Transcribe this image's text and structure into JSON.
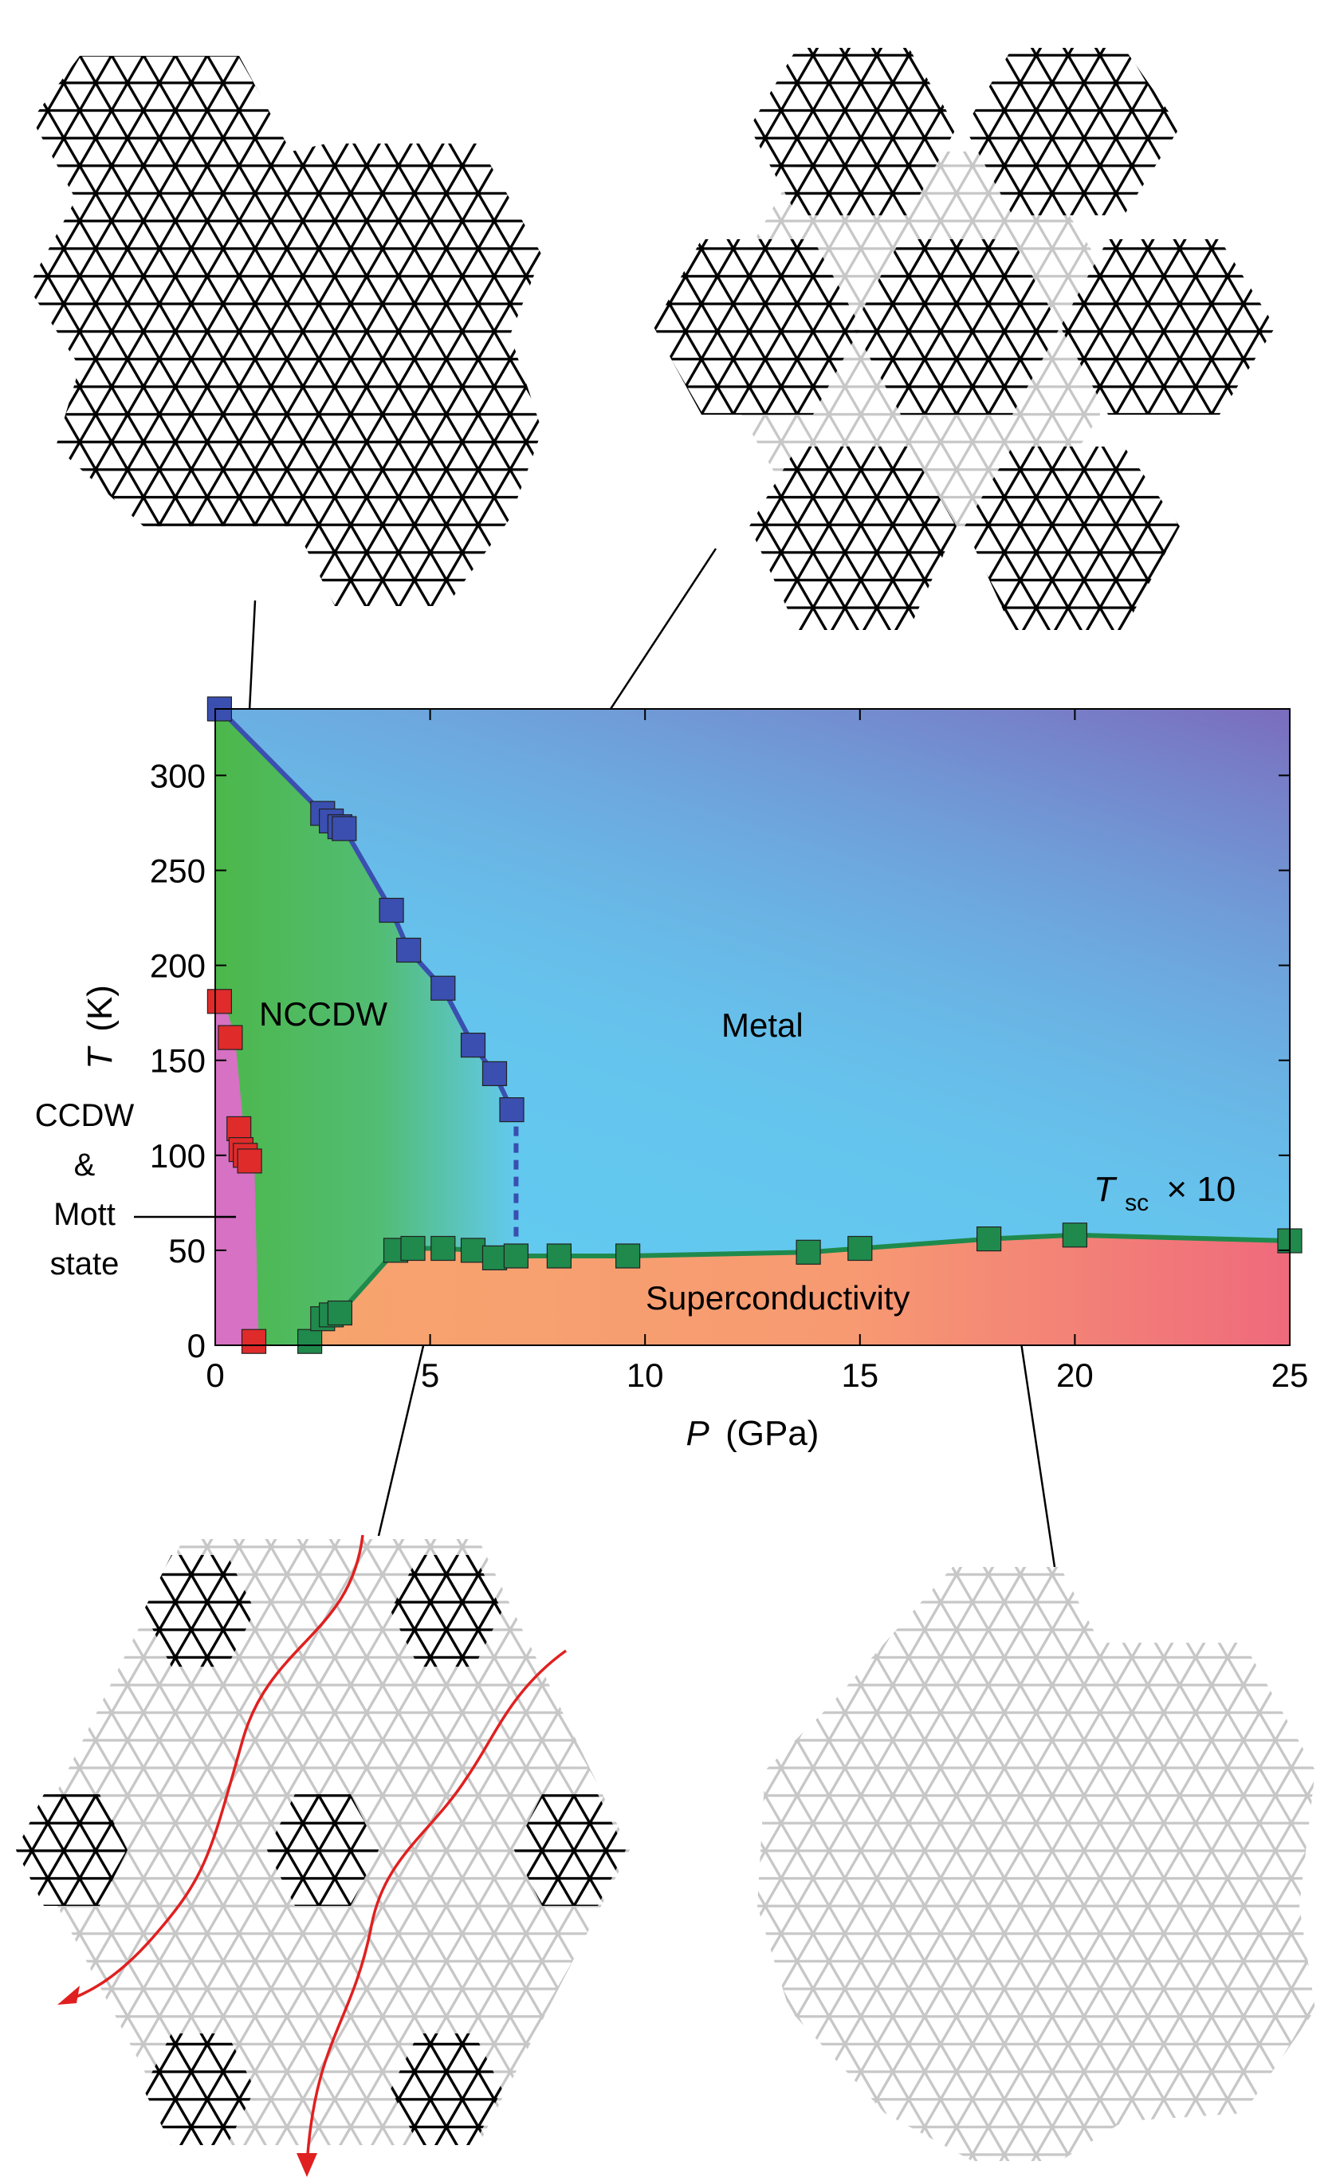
{
  "chart_data": {
    "type": "scatter",
    "xlabel_symbol": "P",
    "xlabel_unit": "(GPa)",
    "ylabel_symbol": "T",
    "ylabel_unit": "(K)",
    "xlim": [
      0,
      25
    ],
    "ylim": [
      0,
      335
    ],
    "xticks": [
      0,
      5,
      10,
      15,
      20,
      25
    ],
    "yticks": [
      0,
      50,
      100,
      150,
      200,
      250,
      300
    ],
    "xtick_labels": [
      "0",
      "5",
      "10",
      "15",
      "20",
      "25"
    ],
    "ytick_labels": [
      "0",
      "50",
      "100",
      "150",
      "200",
      "250",
      "300"
    ],
    "grid": false,
    "regions": {
      "mott": {
        "lines": [
          "CCDW",
          "&",
          "Mott",
          "state"
        ],
        "color": "#d671c3"
      },
      "nccdw": {
        "label": "NCCDW",
        "color": "#4cb74a"
      },
      "metal": {
        "label": "Metal",
        "color": "#62c9ef",
        "color_high": "#7b6cbd"
      },
      "superconductivity": {
        "label": "Superconductivity",
        "color": "#f7a46e",
        "color_high": "#ef6a7c"
      }
    },
    "annotation": {
      "symbol": "T",
      "subscript": "sc",
      "suffix": "× 10"
    },
    "series": [
      {
        "color": "#3a4fb0",
        "marker": "square",
        "x": [
          0.1,
          2.5,
          2.7,
          2.9,
          3.0,
          4.1,
          4.5,
          5.3,
          6.0,
          6.5,
          6.9
        ],
        "y": [
          335,
          280,
          276,
          273,
          272,
          229,
          208,
          188,
          158,
          143,
          124
        ],
        "line": true,
        "dashed_segment": {
          "x": 7.0,
          "y": [
            124,
            48
          ]
        }
      },
      {
        "color": "#1f8a4c",
        "marker": "square",
        "x": [
          2.2,
          2.5,
          2.7,
          2.9,
          4.2,
          4.6,
          5.3,
          6.0,
          6.5,
          7.0,
          8.0,
          9.6,
          13.8,
          15.0,
          18.0,
          20.0,
          25.0
        ],
        "y": [
          2,
          14,
          16,
          17,
          50,
          51,
          51,
          50,
          46,
          47,
          47,
          47,
          49,
          51,
          56,
          58,
          55
        ],
        "line": true
      },
      {
        "color": "#e02b2b",
        "marker": "square",
        "x": [
          0.1,
          0.35,
          0.55,
          0.6,
          0.7,
          0.8,
          0.9
        ],
        "y": [
          181,
          162,
          114,
          103,
          100,
          97,
          2
        ],
        "line": false
      }
    ]
  },
  "structures": {
    "top_left": {
      "dark": "#000000"
    },
    "top_right": {
      "dark": "#000000",
      "light": "#c7c7c7"
    },
    "bottom_left": {
      "dark": "#000000",
      "light": "#c7c7c7",
      "arrow_color": "#e02020"
    },
    "bottom_right": {
      "light": "#c7c7c7"
    }
  }
}
